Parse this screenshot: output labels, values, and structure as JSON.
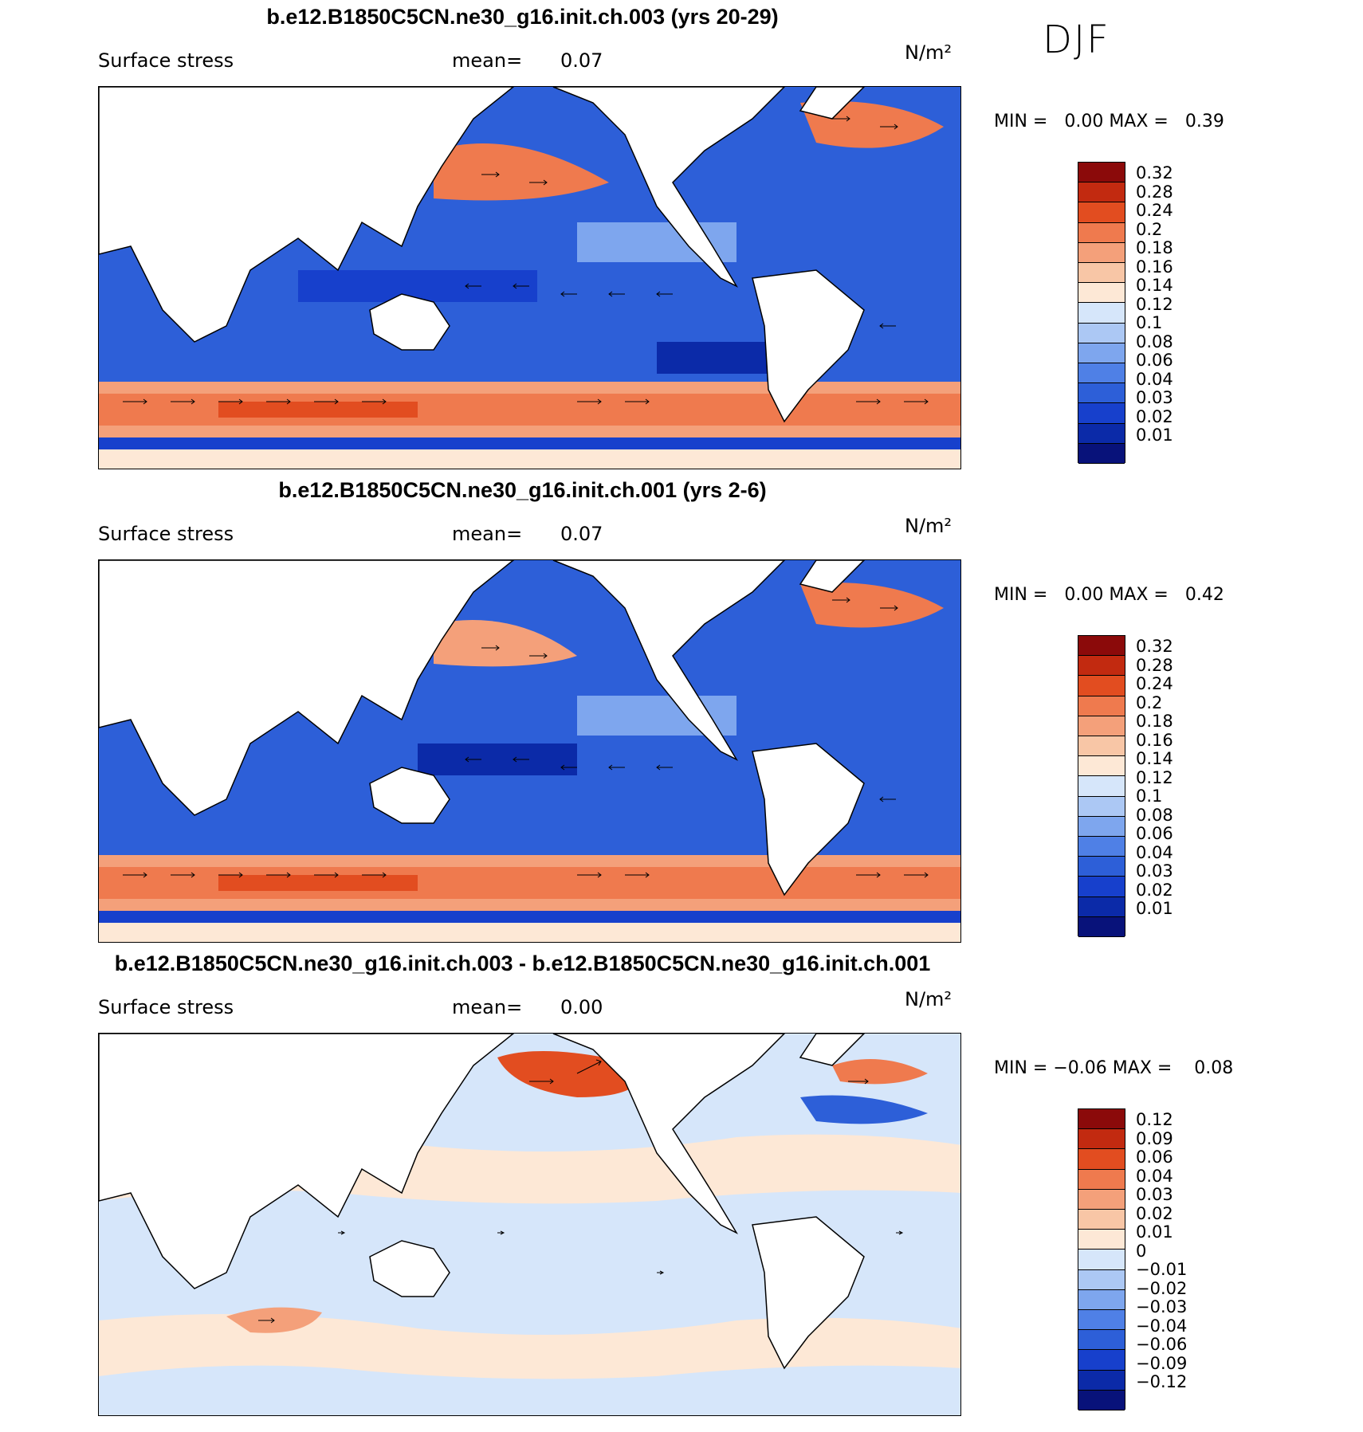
{
  "season": "DJF",
  "palette_pos": [
    "#08127a",
    "#0b2aa8",
    "#1740cc",
    "#2d5fd8",
    "#4f80e6",
    "#7ea6ee",
    "#acc8f4",
    "#d6e6fa",
    "#fde8d6",
    "#f8c6a6",
    "#f4a07a",
    "#ef7a4e",
    "#e24d20",
    "#c22a10",
    "#8b0a0a"
  ],
  "palette_diff": [
    "#08127a",
    "#0b2aa8",
    "#1740cc",
    "#2d5fd8",
    "#4f80e6",
    "#7ea6ee",
    "#acc8f4",
    "#d6e6fa",
    "#fde8d6",
    "#f8c6a6",
    "#f4a07a",
    "#ef7a4e",
    "#e24d20",
    "#c22a10",
    "#8b0a0a"
  ],
  "panels": [
    {
      "title": "b.e12.B1850C5CN.ne30_g16.init.ch.003 (yrs 20-29)",
      "variable": "Surface stress",
      "mean_label": "mean=",
      "mean_value": "0.07",
      "units": "N/m²",
      "min_label": "MIN =",
      "min_value": "0.00",
      "max_label": "MAX =",
      "max_value": "0.39",
      "colorbar_levels": [
        "0.32",
        "0.28",
        "0.24",
        "0.2",
        "0.18",
        "0.16",
        "0.14",
        "0.12",
        "0.1",
        "0.08",
        "0.06",
        "0.04",
        "0.03",
        "0.02",
        "0.01"
      ]
    },
    {
      "title": "b.e12.B1850C5CN.ne30_g16.init.ch.001 (yrs 2-6)",
      "variable": "Surface stress",
      "mean_label": "mean=",
      "mean_value": "0.07",
      "units": "N/m²",
      "min_label": "MIN =",
      "min_value": "0.00",
      "max_label": "MAX =",
      "max_value": "0.42",
      "colorbar_levels": [
        "0.32",
        "0.28",
        "0.24",
        "0.2",
        "0.18",
        "0.16",
        "0.14",
        "0.12",
        "0.1",
        "0.08",
        "0.06",
        "0.04",
        "0.03",
        "0.02",
        "0.01"
      ]
    },
    {
      "title": "b.e12.B1850C5CN.ne30_g16.init.ch.003 - b.e12.B1850C5CN.ne30_g16.init.ch.001",
      "variable": "Surface stress",
      "mean_label": "mean=",
      "mean_value": "0.00",
      "units": "N/m²",
      "min_label": "MIN =",
      "min_value": "−0.06",
      "max_label": "MAX =",
      "max_value": "0.08",
      "colorbar_levels": [
        "0.12",
        "0.09",
        "0.06",
        "0.04",
        "0.03",
        "0.02",
        "0.01",
        "0",
        "−0.01",
        "−0.02",
        "−0.03",
        "−0.04",
        "−0.06",
        "−0.09",
        "−0.12"
      ]
    }
  ]
}
